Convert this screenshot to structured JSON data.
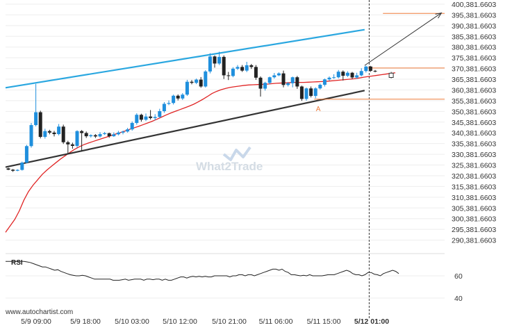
{
  "chart_data": {
    "type": "candlestick",
    "source": "www.autochartist.com",
    "watermark": "What2Trade",
    "colors": {
      "up": "#1f8fdd",
      "down": "#222222",
      "resistance": "#2aa7e0",
      "support": "#333333",
      "moving_average": "#e02424",
      "levels": "#ef7b3a",
      "projection": "#333333",
      "rsi": "#222222",
      "current_bar": "#333333"
    },
    "y_axis": {
      "min": 285381.6603,
      "max": 400381.6603,
      "ticks": [
        "400,381.6603",
        "395,381.6603",
        "390,381.6603",
        "385,381.6603",
        "380,381.6603",
        "375,381.6603",
        "370,381.6603",
        "365,381.6603",
        "360,381.6603",
        "355,381.6603",
        "350,381.6603",
        "345,381.6603",
        "340,381.6603",
        "335,381.6603",
        "330,381.6603",
        "325,381.6603",
        "320,381.6603",
        "315,381.6603",
        "310,381.6603",
        "305,381.6603",
        "300,381.6603",
        "295,381.6603",
        "290,381.6603"
      ]
    },
    "x_axis": {
      "labels": [
        "5/9 09:00",
        "5/9 18:00",
        "5/10 03:00",
        "5/10 12:00",
        "5/10 21:00",
        "5/11 06:00",
        "5/11 15:00",
        "5/12 01:00"
      ],
      "highlighted_label": "5/12 01:00"
    },
    "candles": [
      [
        323800,
        323200,
        324100,
        323000
      ],
      [
        323200,
        322700,
        323500,
        322200
      ],
      [
        322700,
        323100,
        323400,
        322500
      ],
      [
        323100,
        326500,
        327000,
        322800
      ],
      [
        326500,
        334200,
        334800,
        326200
      ],
      [
        334200,
        344000,
        345000,
        333500
      ],
      [
        344000,
        350000,
        363200,
        343400
      ],
      [
        350000,
        338500,
        350700,
        337800
      ],
      [
        338500,
        341200,
        342300,
        337700
      ],
      [
        341200,
        340500,
        341800,
        339700
      ],
      [
        340500,
        339800,
        341300,
        338700
      ],
      [
        339800,
        343300,
        344500,
        339200
      ],
      [
        343300,
        336000,
        344200,
        335200
      ],
      [
        336000,
        335000,
        336700,
        330500
      ],
      [
        335000,
        334300,
        335800,
        333000
      ],
      [
        334300,
        341200,
        341600,
        333500
      ],
      [
        341200,
        340300,
        341700,
        331700
      ],
      [
        340300,
        338800,
        341000,
        338000
      ],
      [
        338800,
        339300,
        339700,
        338200
      ],
      [
        339300,
        338700,
        339800,
        338000
      ],
      [
        338700,
        339800,
        340700,
        338200
      ],
      [
        339800,
        340200,
        340800,
        339400
      ],
      [
        340200,
        338800,
        340500,
        338100
      ],
      [
        338800,
        339700,
        340600,
        338500
      ],
      [
        339700,
        340500,
        341300,
        339200
      ],
      [
        340500,
        341000,
        341400,
        339700
      ],
      [
        341000,
        342000,
        342700,
        340500
      ],
      [
        342000,
        345000,
        345700,
        341400
      ],
      [
        345000,
        348800,
        349500,
        344200
      ],
      [
        348800,
        346500,
        349300,
        345600
      ],
      [
        346500,
        348000,
        349400,
        345900
      ],
      [
        348000,
        347300,
        351000,
        346600
      ],
      [
        347300,
        347800,
        349100,
        346200
      ],
      [
        347800,
        350500,
        351600,
        347300
      ],
      [
        350500,
        353900,
        354700,
        349700
      ],
      [
        353900,
        354300,
        355500,
        353300
      ],
      [
        354300,
        357700,
        358200,
        353600
      ],
      [
        357700,
        356400,
        358300,
        355500
      ],
      [
        356400,
        358200,
        358900,
        355700
      ],
      [
        358200,
        364200,
        365100,
        357600
      ],
      [
        364200,
        363700,
        365000,
        363000
      ],
      [
        363700,
        365200,
        365700,
        363100
      ],
      [
        365200,
        362000,
        366400,
        361400
      ],
      [
        362000,
        369000,
        369600,
        361500
      ],
      [
        369000,
        376000,
        377500,
        368100
      ],
      [
        376000,
        372700,
        376500,
        370800
      ],
      [
        372700,
        375800,
        378200,
        372000
      ],
      [
        375800,
        367200,
        376500,
        365500
      ],
      [
        367200,
        366900,
        368800,
        365000
      ],
      [
        366900,
        370300,
        371000,
        366300
      ],
      [
        370300,
        371100,
        372000,
        369700
      ],
      [
        371100,
        369400,
        372000,
        368800
      ],
      [
        369400,
        371900,
        373500,
        368700
      ],
      [
        371900,
        371100,
        372500,
        370200
      ],
      [
        371100,
        366100,
        372000,
        365100
      ],
      [
        366100,
        361000,
        366700,
        357300
      ],
      [
        361000,
        363700,
        364200,
        360100
      ],
      [
        363700,
        366300,
        366600,
        363000
      ],
      [
        366300,
        367200,
        368300,
        365700
      ],
      [
        367200,
        368100,
        368600,
        366800
      ],
      [
        368100,
        362700,
        369400,
        361600
      ],
      [
        362700,
        363500,
        364100,
        362000
      ],
      [
        363500,
        366300,
        366600,
        361600
      ],
      [
        366300,
        362000,
        366900,
        360900
      ],
      [
        362000,
        356200,
        362400,
        355300
      ],
      [
        356200,
        361100,
        361500,
        355400
      ],
      [
        361100,
        357600,
        362000,
        356900
      ],
      [
        357600,
        361100,
        361600,
        356500
      ],
      [
        361100,
        362800,
        363400,
        360600
      ],
      [
        362800,
        365300,
        365700,
        362000
      ],
      [
        365300,
        366100,
        366700,
        364700
      ],
      [
        366100,
        366300,
        367700,
        365600
      ],
      [
        366300,
        368900,
        369700,
        365800
      ],
      [
        368900,
        367000,
        369500,
        364800
      ],
      [
        367000,
        368400,
        369100,
        366400
      ],
      [
        368400,
        366200,
        368800,
        365500
      ],
      [
        366200,
        367200,
        368400,
        365600
      ],
      [
        367200,
        369200,
        370500,
        366700
      ],
      [
        369200,
        371300,
        371700,
        368500
      ],
      [
        371300,
        369300,
        371600,
        368800
      ],
      [
        369300,
        369200,
        369700,
        368600
      ]
    ],
    "current_bar": [
      368200,
      366200,
      368800,
      365800
    ],
    "resistance_line": {
      "from_bar": 0,
      "from_value": 361400,
      "to_bar": 78,
      "to_value": 388500
    },
    "support_line": {
      "from_bar": 0,
      "from_value": 324400,
      "to_bar": 78,
      "to_value": 360100
    },
    "moving_average": {
      "from_bar": 0,
      "values": [
        294000,
        297000,
        300000,
        304000,
        309000,
        313000,
        316000,
        318500,
        321000,
        323000,
        324800,
        326500,
        328200,
        329700,
        331200,
        332600,
        333800,
        334800,
        335600,
        336300,
        337000,
        337700,
        338400,
        339100,
        339800,
        340500,
        341200,
        342000,
        342700,
        343400,
        344200,
        345000,
        345800,
        346700,
        347700,
        348700,
        349600,
        350400,
        351200,
        352000,
        352800,
        353700,
        354800,
        356000,
        357300,
        358700,
        359700,
        360500,
        361100,
        361600,
        361900,
        362200,
        362500,
        362700,
        362800,
        362900,
        363000,
        363100,
        363300,
        363500,
        363600,
        363700,
        363800,
        363900,
        363900,
        363900,
        364000,
        364100,
        364200,
        364300,
        364400,
        364600,
        364800,
        365000,
        365200,
        365400,
        365600,
        365900,
        366300,
        366600,
        366900,
        367200,
        367500,
        367800,
        368100,
        368400
      ]
    },
    "levels": [
      {
        "value": 396100,
        "from_bar": 82
      },
      {
        "value": 370600,
        "from_bar": 78
      },
      {
        "value": 356100,
        "from_bar": 67
      }
    ],
    "projection_arrow": {
      "from_bar": 78,
      "from_value": 371800,
      "to_bar": 94,
      "to_value": 396300
    },
    "pattern_label": {
      "text": "A",
      "bar": 68,
      "value": 352800
    },
    "rsi": {
      "label": "RSI",
      "ticks": [
        "60",
        "40"
      ],
      "range": [
        30,
        80
      ],
      "values": [
        73,
        73,
        73,
        73,
        73,
        73,
        73,
        72.5,
        72,
        71,
        70,
        69,
        68,
        68,
        67,
        66,
        65,
        65.5,
        64,
        63,
        62,
        61,
        60.5,
        60,
        60,
        60.5,
        60,
        59,
        58,
        57,
        57,
        57,
        57,
        57,
        57,
        56,
        56,
        56,
        56.5,
        57,
        56,
        56.5,
        57,
        57,
        57,
        56,
        57,
        57,
        56.5,
        57,
        57,
        56,
        57,
        56,
        56,
        57,
        58,
        59,
        59,
        58,
        59,
        59.5,
        59,
        59.5,
        59,
        59.5,
        59,
        59,
        60,
        60,
        60,
        60,
        60,
        59,
        60,
        60,
        61,
        61,
        60,
        61,
        61,
        60,
        61,
        62,
        63,
        64,
        65,
        66,
        66,
        65,
        66,
        64,
        63,
        61,
        61,
        60.5,
        60,
        60.5,
        60,
        61,
        60,
        60,
        60,
        60,
        60.5,
        61,
        61,
        61,
        62,
        63,
        64,
        65,
        64,
        62,
        61,
        61,
        60,
        61,
        63,
        63,
        61.5,
        61,
        60,
        62,
        63,
        64,
        65,
        64,
        62
      ]
    }
  }
}
